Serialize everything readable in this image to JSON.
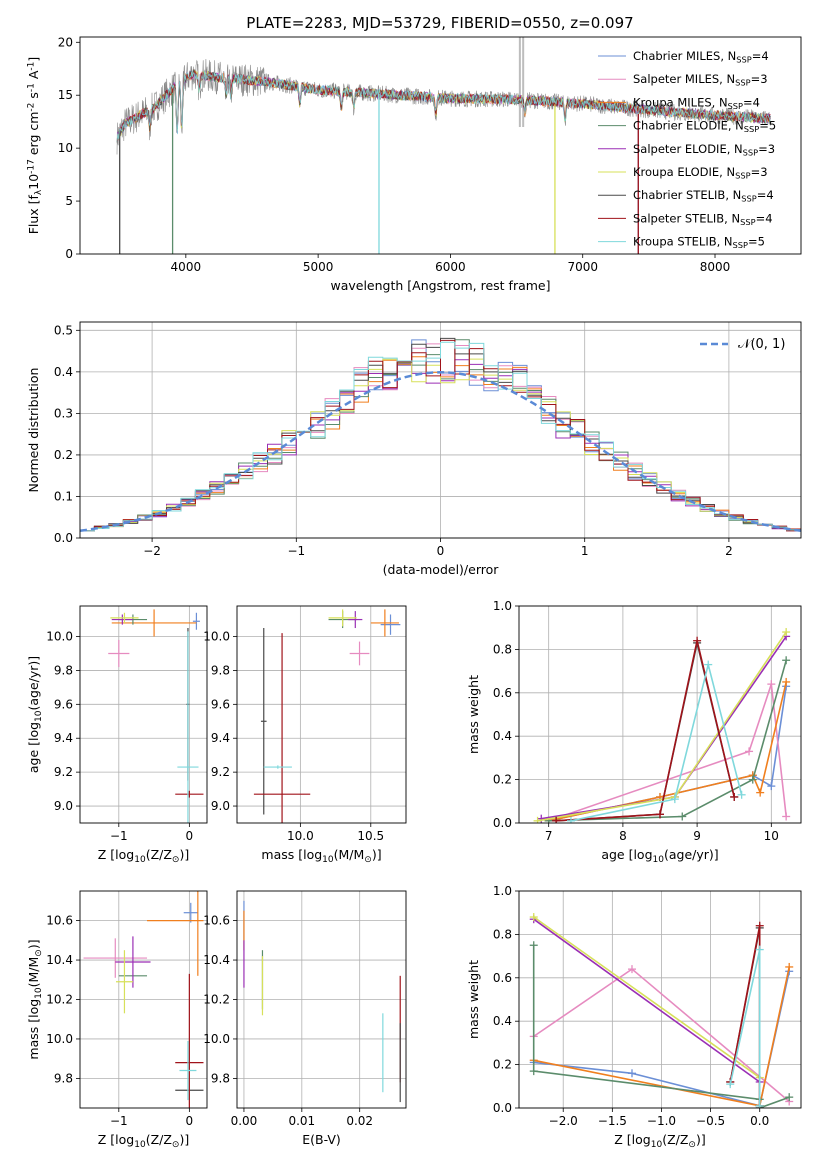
{
  "figure": {
    "title": "PLATE=2283, MJD=53729, FIBERID=0550, z=0.097"
  },
  "series": [
    {
      "key": "cm",
      "label": "Chabrier MILES, N$_{SSP}$=4",
      "color": "#6b8fd6"
    },
    {
      "key": "sm",
      "label": "Salpeter MILES, N$_{SSP}$=3",
      "color": "#e68bc0"
    },
    {
      "key": "km",
      "label": "Kroupa MILES, N$_{SSP}$=4",
      "color": "#f07f1e"
    },
    {
      "key": "ce",
      "label": "Chabrier ELODIE, N$_{SSP}$=5",
      "color": "#5b8c6b"
    },
    {
      "key": "se",
      "label": "Salpeter ELODIE, N$_{SSP}$=3",
      "color": "#9a2fb5"
    },
    {
      "key": "ke",
      "label": "Kroupa ELODIE, N$_{SSP}$=3",
      "color": "#d7e05a"
    },
    {
      "key": "cs",
      "label": "Chabrier STELIB, N$_{SSP}$=4",
      "color": "#4a4a4a"
    },
    {
      "key": "ss",
      "label": "Salpeter STELIB, N$_{SSP}$=4",
      "color": "#a0131a"
    },
    {
      "key": "ks",
      "label": "Kroupa STELIB, N$_{SSP}$=5",
      "color": "#7fd8dc"
    }
  ],
  "chart_data": [
    {
      "id": "spectrum",
      "type": "line",
      "title": "PLATE=2283, MJD=53729, FIBERID=0550, z=0.097",
      "xlabel": "wavelength [Angstrom, rest frame]",
      "ylabel": "Flux [f$_\\lambda$10$^{-17}$ erg cm$^{-2}$ s$^{-1}$ A$^{-1}$]",
      "xlim": [
        3200,
        8650
      ],
      "ylim": [
        0,
        20.5
      ],
      "xticks": [
        4000,
        5000,
        6000,
        7000,
        8000
      ],
      "yticks": [
        0,
        5,
        10,
        15,
        20
      ],
      "continuum": {
        "x": [
          3480,
          3540,
          3650,
          3760,
          3850,
          3950,
          4050,
          4300,
          4600,
          5000,
          5500,
          6000,
          6500,
          7000,
          7500,
          8000,
          8400
        ],
        "y": [
          11.0,
          12.3,
          13.1,
          13.8,
          15.0,
          16.2,
          17.0,
          16.6,
          16.3,
          15.5,
          15.1,
          14.7,
          14.6,
          14.2,
          13.6,
          13.1,
          12.8
        ]
      },
      "absorption_lines": [
        3727,
        3934,
        3969,
        4102,
        4304,
        4340,
        4861,
        5175,
        5270,
        5890,
        6563,
        6867
      ],
      "model_drops": [
        {
          "series": "cm",
          "x": 7420,
          "value": 0
        },
        {
          "series": "cs",
          "x": 3500,
          "value": 0
        },
        {
          "series": "ss",
          "x": 7420,
          "value": 0
        },
        {
          "series": "ks",
          "x": 5460,
          "value": 0
        },
        {
          "series": "ke",
          "x": 6790,
          "value": 0
        },
        {
          "series": "ce",
          "x": 3900,
          "value": 0
        }
      ],
      "grid": false,
      "legend": "top-right"
    },
    {
      "id": "residuals",
      "type": "bar",
      "xlabel": "(data-model)/error",
      "ylabel": "Normed distribution",
      "xlim": [
        -2.5,
        2.5
      ],
      "ylim": [
        0,
        0.52
      ],
      "xticks": [
        -2,
        -1,
        0,
        1,
        2
      ],
      "yticks": [
        0.0,
        0.1,
        0.2,
        0.3,
        0.4,
        0.5
      ],
      "bin_width": 0.1,
      "gaussian_label": "$\\mathcal{N}(0, 1)$",
      "grid": true,
      "legend": "top-right"
    },
    {
      "id": "age_vs_Z",
      "type": "scatter",
      "xlabel": "Z [log$_{10}$(Z/Z$_\\odot$)]",
      "ylabel": "age  [log$_{10}$(age/yr)]",
      "xlim": [
        -1.55,
        0.25
      ],
      "ylim": [
        8.9,
        10.18
      ],
      "xticks": [
        -1,
        0
      ],
      "yticks": [
        9.0,
        9.2,
        9.4,
        9.6,
        9.8,
        10.0
      ],
      "grid": true,
      "points": [
        {
          "series": "cm",
          "x": 0.1,
          "y": 10.09,
          "ex": 0.05,
          "ey": 0.05
        },
        {
          "series": "sm",
          "x": -1.0,
          "y": 9.9,
          "ex": 0.15,
          "ey": 0.08
        },
        {
          "series": "km",
          "x": -0.5,
          "y": 10.08,
          "ex": 0.6,
          "ey": 0.08
        },
        {
          "series": "ce",
          "x": -0.8,
          "y": 10.1,
          "ex": 0.2,
          "ey": 0.03
        },
        {
          "series": "se",
          "x": -0.95,
          "y": 10.1,
          "ex": 0.15,
          "ey": 0.03
        },
        {
          "series": "ke",
          "x": -0.92,
          "y": 10.11,
          "ex": 0.2,
          "ey": 0.03
        },
        {
          "series": "cs",
          "x": -0.02,
          "y": 9.6,
          "ex": 0.02,
          "ey": 0.45
        },
        {
          "series": "ss",
          "x": 0.0,
          "y": 9.07,
          "ex": 0.2,
          "ey": 0.02
        },
        {
          "series": "ks",
          "x": -0.02,
          "y": 9.23,
          "ex": 0.15,
          "ey": 0.8
        }
      ]
    },
    {
      "id": "age_vs_mass",
      "type": "scatter",
      "xlabel": "mass [log$_{10}$(M/M$_\\odot$)]",
      "ylabel": "",
      "xlim": [
        9.55,
        10.75
      ],
      "ylim": [
        8.9,
        10.18
      ],
      "xticks": [
        10.0,
        10.5
      ],
      "yticks": [
        9.0,
        9.2,
        9.4,
        9.6,
        9.8,
        10.0
      ],
      "grid": true,
      "points": [
        {
          "series": "cm",
          "x": 10.64,
          "y": 10.07,
          "ex": 0.07,
          "ey": 0.06
        },
        {
          "series": "sm",
          "x": 10.42,
          "y": 9.9,
          "ex": 0.07,
          "ey": 0.07
        },
        {
          "series": "km",
          "x": 10.6,
          "y": 10.08,
          "ex": 0.1,
          "ey": 0.08
        },
        {
          "series": "ce",
          "x": 10.3,
          "y": 10.1,
          "ex": 0.1,
          "ey": 0.05
        },
        {
          "series": "se",
          "x": 10.39,
          "y": 10.1,
          "ex": 0.05,
          "ey": 0.05
        },
        {
          "series": "ke",
          "x": 10.3,
          "y": 10.11,
          "ex": 0.1,
          "ey": 0.05
        },
        {
          "series": "cs",
          "x": 9.74,
          "y": 9.5,
          "ex": 0.02,
          "ey": 0.55
        },
        {
          "series": "ss",
          "x": 9.87,
          "y": 9.07,
          "ex": 0.2,
          "ey": 0.95
        },
        {
          "series": "ks",
          "x": 9.84,
          "y": 9.23,
          "ex": 0.1,
          "ey": 0.01
        }
      ]
    },
    {
      "id": "weight_vs_age",
      "type": "line",
      "xlabel": "age  [log$_{10}$(age/yr)]",
      "ylabel": "mass weight",
      "xlim": [
        6.6,
        10.4
      ],
      "ylim": [
        0,
        1.0
      ],
      "xticks": [
        7,
        8,
        9,
        10
      ],
      "yticks": [
        0.0,
        0.2,
        0.4,
        0.6,
        0.8,
        1.0
      ],
      "grid": true,
      "series_points": {
        "cm": [
          [
            7.0,
            0.01
          ],
          [
            8.5,
            0.12
          ],
          [
            9.75,
            0.22
          ],
          [
            10.0,
            0.17
          ],
          [
            10.2,
            0.63
          ]
        ],
        "sm": [
          [
            7.0,
            0.01
          ],
          [
            9.7,
            0.33
          ],
          [
            10.0,
            0.64
          ],
          [
            10.2,
            0.03
          ]
        ],
        "km": [
          [
            7.0,
            0.01
          ],
          [
            8.5,
            0.12
          ],
          [
            9.75,
            0.22
          ],
          [
            9.85,
            0.14
          ],
          [
            10.2,
            0.65
          ]
        ],
        "ce": [
          [
            7.0,
            0.01
          ],
          [
            8.8,
            0.03
          ],
          [
            9.75,
            0.2
          ],
          [
            10.2,
            0.75
          ]
        ],
        "se": [
          [
            6.9,
            0.02
          ],
          [
            8.7,
            0.12
          ],
          [
            10.2,
            0.86
          ]
        ],
        "ke": [
          [
            6.85,
            0.01
          ],
          [
            8.7,
            0.12
          ],
          [
            10.2,
            0.88
          ]
        ],
        "cs": [
          [
            7.1,
            0.01
          ],
          [
            8.5,
            0.04
          ],
          [
            9.0,
            0.83
          ],
          [
            9.5,
            0.12
          ]
        ],
        "ss": [
          [
            7.1,
            0.01
          ],
          [
            8.5,
            0.04
          ],
          [
            9.0,
            0.84
          ],
          [
            9.5,
            0.12
          ]
        ],
        "ks": [
          [
            7.3,
            0.01
          ],
          [
            8.7,
            0.11
          ],
          [
            9.15,
            0.73
          ],
          [
            9.6,
            0.13
          ]
        ]
      }
    },
    {
      "id": "mass_vs_Z",
      "type": "scatter",
      "xlabel": "Z [log$_{10}$(Z/Z$_\\odot$)]",
      "ylabel": "mass [log$_{10}$(M/M$_\\odot$)]",
      "xlim": [
        -1.55,
        0.25
      ],
      "ylim": [
        9.65,
        10.75
      ],
      "xticks": [
        -1,
        0
      ],
      "yticks": [
        9.8,
        10.0,
        10.2,
        10.4,
        10.6
      ],
      "grid": true,
      "points": [
        {
          "series": "cm",
          "x": 0.02,
          "y": 10.64,
          "ex": 0.1,
          "ey": 0.05
        },
        {
          "series": "sm",
          "x": -1.05,
          "y": 10.41,
          "ex": 0.45,
          "ey": 0.1
        },
        {
          "series": "km",
          "x": -0.2,
          "y": 10.6,
          "ex": 0.4,
          "ey": 0.0
        },
        {
          "series": "ce",
          "x": -0.8,
          "y": 10.32,
          "ex": 0.2,
          "ey": 0.0
        },
        {
          "series": "se",
          "x": -0.8,
          "y": 10.39,
          "ex": 0.25,
          "ey": 0.13
        },
        {
          "series": "ke",
          "x": -0.92,
          "y": 10.29,
          "ex": 0.12,
          "ey": 0.16
        },
        {
          "series": "cs",
          "x": 0.0,
          "y": 9.74,
          "ex": 0.2,
          "ey": 0.0
        },
        {
          "series": "ss",
          "x": 0.0,
          "y": 9.88,
          "ex": 0.2,
          "ey": 0.45
        },
        {
          "series": "ks",
          "x": -0.02,
          "y": 9.84,
          "ex": 0.12,
          "ey": 0.15
        },
        {
          "series": "km",
          "x": 0.12,
          "y": 10.6,
          "ex": 0.0,
          "ey": 0.28
        }
      ]
    },
    {
      "id": "mass_vs_ebv",
      "type": "scatter",
      "xlabel": "E(B-V)",
      "ylabel": "",
      "xlim": [
        -0.0012,
        0.028
      ],
      "ylim": [
        9.65,
        10.75
      ],
      "xticks": [
        0.0,
        0.01,
        0.02
      ],
      "yticks": [
        9.8,
        10.0,
        10.2,
        10.4,
        10.6
      ],
      "grid": true,
      "points": [
        {
          "series": "cm",
          "x": 0.0,
          "y": 10.6,
          "ex": 0,
          "ey": 0.1
        },
        {
          "series": "km",
          "x": 0.0,
          "y": 10.55,
          "ex": 0,
          "ey": 0.1
        },
        {
          "series": "se",
          "x": 0.0,
          "y": 10.38,
          "ex": 0,
          "ey": 0.12
        },
        {
          "series": "ce",
          "x": 0.0032,
          "y": 10.3,
          "ex": 0,
          "ey": 0.15
        },
        {
          "series": "ke",
          "x": 0.0032,
          "y": 10.27,
          "ex": 0,
          "ey": 0.15
        },
        {
          "series": "ks",
          "x": 0.024,
          "y": 9.93,
          "ex": 0,
          "ey": 0.2
        },
        {
          "series": "ss",
          "x": 0.027,
          "y": 10.05,
          "ex": 0,
          "ey": 0.27
        },
        {
          "series": "cs",
          "x": 0.027,
          "y": 9.88,
          "ex": 0,
          "ey": 0.2
        }
      ]
    },
    {
      "id": "weight_vs_Z",
      "type": "line",
      "xlabel": "Z [log$_{10}$(Z/Z$_\\odot$)]",
      "ylabel": "mass weight",
      "xlim": [
        -2.45,
        0.42
      ],
      "ylim": [
        0,
        1.0
      ],
      "xticks": [
        -2.0,
        -1.5,
        -1.0,
        -0.5,
        0.0
      ],
      "yticks": [
        0.0,
        0.2,
        0.4,
        0.6,
        0.8,
        1.0
      ],
      "grid": true,
      "series_points": {
        "cm": [
          [
            -2.3,
            0.21
          ],
          [
            -1.3,
            0.16
          ],
          [
            0.0,
            0.01
          ],
          [
            0.3,
            0.63
          ]
        ],
        "sm": [
          [
            -2.3,
            0.33
          ],
          [
            -1.3,
            0.64
          ],
          [
            0.3,
            0.03
          ]
        ],
        "km": [
          [
            -2.3,
            0.22
          ],
          [
            0.0,
            0.01
          ],
          [
            0.3,
            0.65
          ]
        ],
        "ce": [
          [
            -2.3,
            0.75
          ],
          [
            -2.3,
            0.17
          ],
          [
            0.0,
            0.04
          ],
          [
            0.0,
            0.0
          ],
          [
            0.3,
            0.05
          ]
        ],
        "se": [
          [
            -2.3,
            0.87
          ],
          [
            0.0,
            0.12
          ],
          [
            0.0,
            0.01
          ]
        ],
        "ke": [
          [
            -2.3,
            0.88
          ],
          [
            0.0,
            0.14
          ],
          [
            0.0,
            0.01
          ]
        ],
        "cs": [
          [
            -0.3,
            0.12
          ],
          [
            0.0,
            0.83
          ],
          [
            0.0,
            0.0
          ]
        ],
        "ss": [
          [
            -0.3,
            0.12
          ],
          [
            0.0,
            0.84
          ],
          [
            0.0,
            0.01
          ]
        ],
        "ks": [
          [
            -0.3,
            0.11
          ],
          [
            0.0,
            0.73
          ],
          [
            0.0,
            0.01
          ]
        ]
      }
    }
  ]
}
